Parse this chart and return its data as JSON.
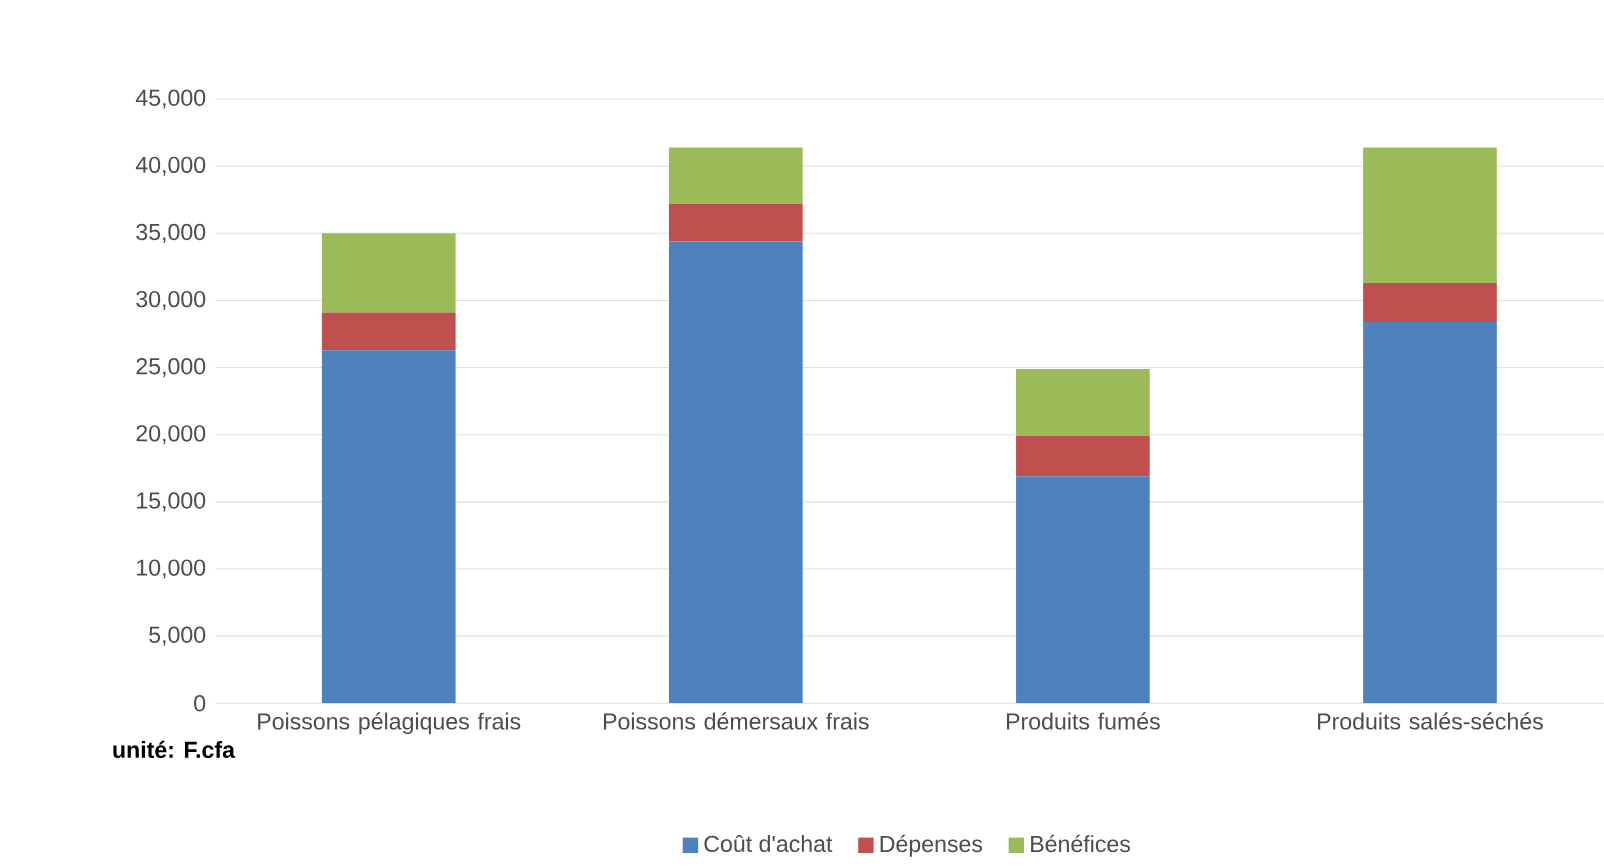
{
  "chart_data": {
    "type": "bar",
    "stacked": true,
    "categories": [
      "Poissons pélagiques frais",
      "Poissons démersaux frais",
      "Produits fumés",
      "Produits salés-séchés"
    ],
    "series": [
      {
        "name": "Coût d'achat",
        "color": "#4f81bd",
        "values": [
          26300,
          34400,
          16900,
          28400
        ]
      },
      {
        "name": "Dépenses",
        "color": "#c0504d",
        "values": [
          2800,
          2800,
          3000,
          2900
        ]
      },
      {
        "name": "Bénéfices",
        "color": "#9bbb59",
        "values": [
          5900,
          4200,
          5000,
          10100
        ]
      }
    ],
    "ylim": [
      0,
      45000
    ],
    "yticks": [
      {
        "value": 0,
        "label": "0"
      },
      {
        "value": 5000,
        "label": "5,000"
      },
      {
        "value": 10000,
        "label": "10,000"
      },
      {
        "value": 15000,
        "label": "15,000"
      },
      {
        "value": 20000,
        "label": "20,000"
      },
      {
        "value": 25000,
        "label": "25,000"
      },
      {
        "value": 30000,
        "label": "30,000"
      },
      {
        "value": 35000,
        "label": "35,000"
      },
      {
        "value": 40000,
        "label": "40,000"
      },
      {
        "value": 45000,
        "label": "45,000"
      }
    ],
    "grid": "y",
    "legend": "bottom",
    "annotations": [
      "unité: F.cfa"
    ]
  }
}
